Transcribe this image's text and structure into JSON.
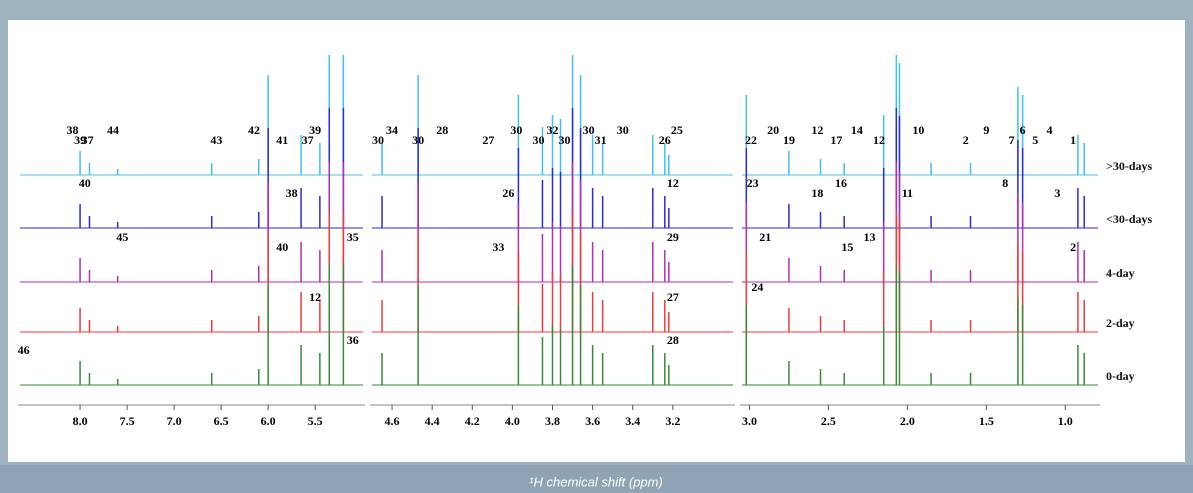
{
  "chart_data": {
    "type": "stacked-spectra",
    "xlabel": "¹H chemical shift (ppm)",
    "traces": [
      {
        "name": ">30-days",
        "color": "#40c0f0"
      },
      {
        "name": "<30-days",
        "color": "#2a2ae0"
      },
      {
        "name": "4-day",
        "color": "#b030b0"
      },
      {
        "name": "2-day",
        "color": "#f03a3a"
      },
      {
        "name": "0-day",
        "color": "#3a8a3a"
      }
    ],
    "panels": [
      {
        "xlim": [
          8.66,
          4.97
        ],
        "xticks": [
          {
            "value": 8.0,
            "label": "8.0"
          },
          7.5,
          {
            "value": 7.0,
            "label": "7.0"
          },
          6.5,
          {
            "value": 6.0,
            "label": "6.0"
          },
          5.5
        ],
        "peaks": [
          [
            8.0,
            0.6
          ],
          [
            7.9,
            0.3
          ],
          [
            7.6,
            0.15
          ],
          [
            6.6,
            0.3
          ],
          [
            6.1,
            0.4
          ],
          [
            6.0,
            2.5
          ],
          [
            5.65,
            1.0
          ],
          [
            5.45,
            0.8
          ],
          [
            5.35,
            3.0
          ],
          [
            5.2,
            3.0
          ]
        ],
        "annotations": [
          {
            "label": "39",
            "ppm": 8.0,
            "trace": 0
          },
          {
            "label": "38",
            "ppm": 8.08,
            "trace": 0
          },
          {
            "label": "37",
            "ppm": 7.92,
            "trace": 0
          },
          {
            "label": "44",
            "ppm": 7.65,
            "trace": 0
          },
          {
            "label": "43",
            "ppm": 6.55,
            "trace": 0
          },
          {
            "label": "42",
            "ppm": 6.15,
            "trace": 0
          },
          {
            "label": "41",
            "ppm": 5.85,
            "trace": 0
          },
          {
            "label": "39",
            "ppm": 5.5,
            "trace": 0
          },
          {
            "label": "37",
            "ppm": 5.58,
            "trace": 0
          },
          {
            "label": "40",
            "ppm": 7.95,
            "trace": 1
          },
          {
            "label": "38",
            "ppm": 5.75,
            "trace": 1
          },
          {
            "label": "45",
            "ppm": 7.55,
            "trace": 2
          },
          {
            "label": "40",
            "ppm": 5.85,
            "trace": 2
          },
          {
            "label": "35",
            "ppm": 5.1,
            "trace": 2
          },
          {
            "label": "12",
            "ppm": 5.5,
            "trace": 3
          },
          {
            "label": "36",
            "ppm": 5.1,
            "trace": 4
          },
          {
            "label": "46",
            "ppm": 8.6,
            "trace": 4
          }
        ]
      },
      {
        "xlim": [
          4.71,
          2.89
        ],
        "xticks": [
          4.6,
          4.4,
          4.2,
          {
            "value": 4.0,
            "label": "4.0"
          },
          3.8,
          3.6,
          3.4,
          3.2
        ],
        "peaks": [
          [
            4.65,
            0.8
          ],
          [
            4.47,
            2.5
          ],
          [
            3.97,
            2.0
          ],
          [
            3.85,
            1.2
          ],
          [
            3.8,
            1.5
          ],
          [
            3.76,
            1.4
          ],
          [
            3.7,
            3.0
          ],
          [
            3.66,
            2.5
          ],
          [
            3.6,
            1.0
          ],
          [
            3.55,
            0.8
          ],
          [
            3.3,
            1.0
          ],
          [
            3.24,
            0.8
          ],
          [
            3.22,
            0.5
          ]
        ],
        "annotations": [
          {
            "label": "30",
            "ppm": 4.67,
            "trace": 0
          },
          {
            "label": "34",
            "ppm": 4.6,
            "trace": 0
          },
          {
            "label": "30",
            "ppm": 4.47,
            "trace": 0
          },
          {
            "label": "28",
            "ppm": 4.35,
            "trace": 0
          },
          {
            "label": "27",
            "ppm": 4.12,
            "trace": 0
          },
          {
            "label": "30",
            "ppm": 3.98,
            "trace": 0
          },
          {
            "label": "30",
            "ppm": 3.87,
            "trace": 0
          },
          {
            "label": "32",
            "ppm": 3.8,
            "trace": 0
          },
          {
            "label": "30",
            "ppm": 3.74,
            "trace": 0
          },
          {
            "label": "30",
            "ppm": 3.62,
            "trace": 0
          },
          {
            "label": "31",
            "ppm": 3.56,
            "trace": 0
          },
          {
            "label": "30",
            "ppm": 3.45,
            "trace": 0
          },
          {
            "label": "26",
            "ppm": 3.24,
            "trace": 0
          },
          {
            "label": "25",
            "ppm": 3.18,
            "trace": 0
          },
          {
            "label": "26",
            "ppm": 4.02,
            "trace": 1
          },
          {
            "label": "12",
            "ppm": 3.2,
            "trace": 1
          },
          {
            "label": "33",
            "ppm": 4.07,
            "trace": 2
          },
          {
            "label": "29",
            "ppm": 3.2,
            "trace": 2
          },
          {
            "label": "27",
            "ppm": 3.2,
            "trace": 3
          },
          {
            "label": "28",
            "ppm": 3.2,
            "trace": 4
          }
        ]
      },
      {
        "xlim": [
          3.06,
          0.78
        ],
        "xticks": [
          {
            "value": 3.0,
            "label": "3.0"
          },
          2.5,
          {
            "value": 2.0,
            "label": "2.0"
          },
          1.5,
          {
            "value": 1.0,
            "label": "1.0"
          }
        ],
        "peaks": [
          [
            3.02,
            2.0
          ],
          [
            2.75,
            0.6
          ],
          [
            2.55,
            0.4
          ],
          [
            2.4,
            0.3
          ],
          [
            2.15,
            1.5
          ],
          [
            2.07,
            3.0
          ],
          [
            2.05,
            2.8
          ],
          [
            1.85,
            0.3
          ],
          [
            1.6,
            0.3
          ],
          [
            1.3,
            2.2
          ],
          [
            1.27,
            2.0
          ],
          [
            0.92,
            1.0
          ],
          [
            0.88,
            0.8
          ]
        ],
        "annotations": [
          {
            "label": "22",
            "ppm": 2.99,
            "trace": 0
          },
          {
            "label": "20",
            "ppm": 2.85,
            "trace": 0
          },
          {
            "label": "19",
            "ppm": 2.75,
            "trace": 0
          },
          {
            "label": "12",
            "ppm": 2.57,
            "trace": 0
          },
          {
            "label": "17",
            "ppm": 2.45,
            "trace": 0
          },
          {
            "label": "14",
            "ppm": 2.32,
            "trace": 0
          },
          {
            "label": "12",
            "ppm": 2.18,
            "trace": 0
          },
          {
            "label": "10",
            "ppm": 1.93,
            "trace": 0
          },
          {
            "label": "2",
            "ppm": 1.63,
            "trace": 0
          },
          {
            "label": "9",
            "ppm": 1.5,
            "trace": 0
          },
          {
            "label": "7",
            "ppm": 1.34,
            "trace": 0
          },
          {
            "label": "6",
            "ppm": 1.27,
            "trace": 0
          },
          {
            "label": "5",
            "ppm": 1.19,
            "trace": 0
          },
          {
            "label": "4",
            "ppm": 1.1,
            "trace": 0
          },
          {
            "label": "1",
            "ppm": 0.95,
            "trace": 0
          },
          {
            "label": "23",
            "ppm": 2.98,
            "trace": 1
          },
          {
            "label": "18",
            "ppm": 2.57,
            "trace": 1
          },
          {
            "label": "16",
            "ppm": 2.42,
            "trace": 1
          },
          {
            "label": "11",
            "ppm": 2.0,
            "trace": 1
          },
          {
            "label": "8",
            "ppm": 1.38,
            "trace": 1
          },
          {
            "label": "3",
            "ppm": 1.05,
            "trace": 1
          },
          {
            "label": "21",
            "ppm": 2.9,
            "trace": 2
          },
          {
            "label": "15",
            "ppm": 2.38,
            "trace": 2
          },
          {
            "label": "13",
            "ppm": 2.24,
            "trace": 2
          },
          {
            "label": "2",
            "ppm": 0.95,
            "trace": 2
          },
          {
            "label": "24",
            "ppm": 2.95,
            "trace": 3
          }
        ]
      }
    ]
  }
}
